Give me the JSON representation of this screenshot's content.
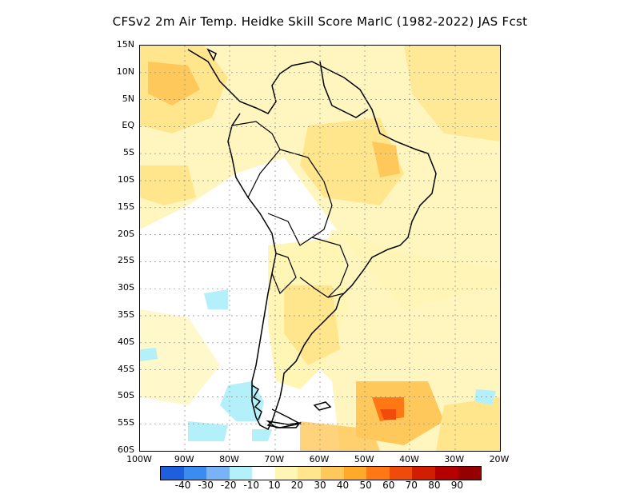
{
  "title": "CFSv2  2m Air Temp. Heidke Skill Score MarIC (1982-2022) JAS Fcst",
  "lat_labels": [
    "15N",
    "10N",
    "5N",
    "EQ",
    "5S",
    "10S",
    "15S",
    "20S",
    "25S",
    "30S",
    "35S",
    "40S",
    "45S",
    "50S",
    "55S",
    "60S"
  ],
  "lon_labels": [
    "100W",
    "90W",
    "80W",
    "70W",
    "60W",
    "50W",
    "40W",
    "30W",
    "20W"
  ],
  "legend": {
    "colors": [
      "#1e5fe0",
      "#3a8cf0",
      "#78b4f5",
      "#b4f0fa",
      "#ffffff",
      "#fff5b4",
      "#ffe68c",
      "#ffc85a",
      "#ffaa28",
      "#ff7814",
      "#f04b0a",
      "#d21e00",
      "#b40000",
      "#960000"
    ],
    "labels": [
      "-40",
      "-30",
      "-20",
      "-10",
      "10",
      "20",
      "30",
      "40",
      "50",
      "60",
      "70",
      "80",
      "90"
    ]
  },
  "map": {
    "lat_range": [
      -60,
      15
    ],
    "lon_range": [
      -100,
      -20
    ],
    "grid": true
  }
}
